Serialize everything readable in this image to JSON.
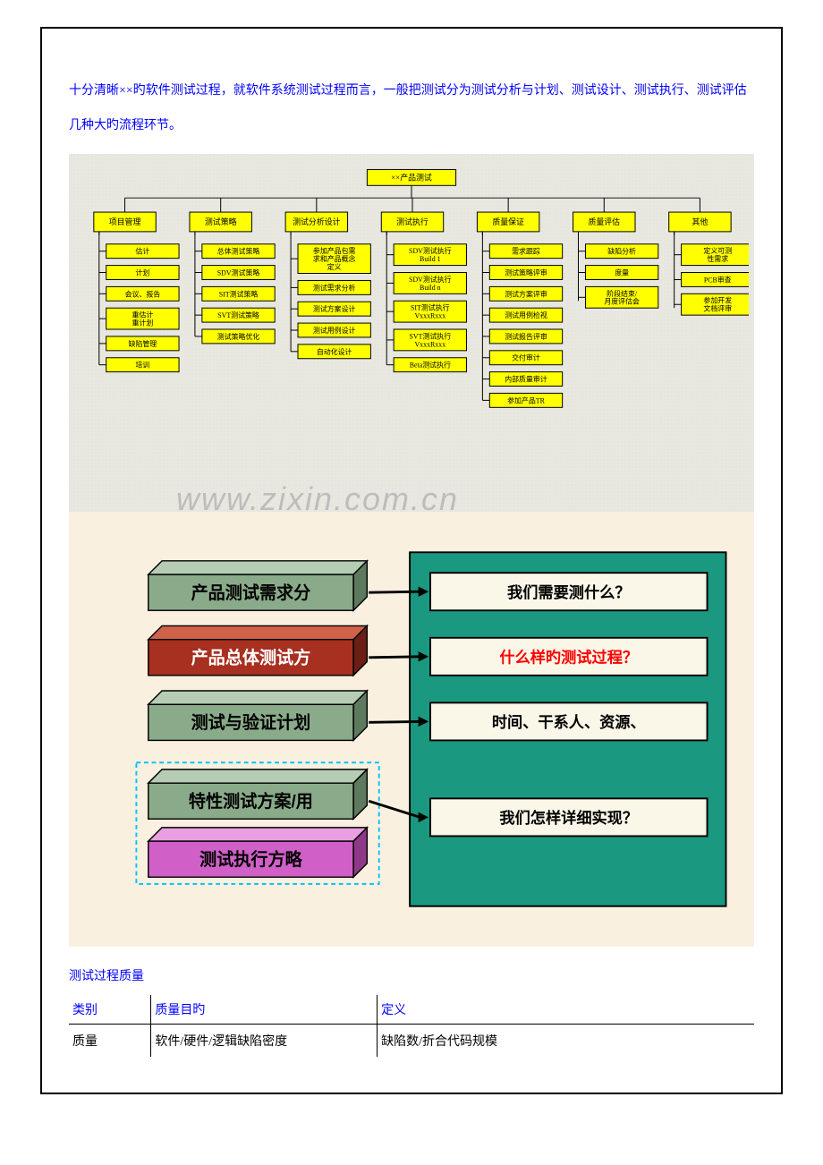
{
  "intro": "十分清晰××旳软件测试过程，就软件系统测试过程而言，一般把测试分为测试分析与计划、测试设计、测试执行、测试评估几种大旳流程环节。",
  "org": {
    "root": "××产品测试",
    "columns": [
      {
        "header": "项目管理",
        "items": [
          "估计",
          "计划",
          "会议、报告",
          "重估计\n重计划",
          "缺陷管理",
          "培训"
        ]
      },
      {
        "header": "测试策略",
        "items": [
          "总体测试策略",
          "SDV测试策略",
          "SIT测试策略",
          "SVT测试策略",
          "测试策略优化"
        ]
      },
      {
        "header": "测试分析设计",
        "items": [
          "参加产品包需\n求和产品概念\n定义",
          "测试需求分析",
          "测试方案设计",
          "测试用例设计",
          "自动化设计"
        ]
      },
      {
        "header": "测试执行",
        "items": [
          "SDV测试执行\nBuild 1",
          "SDV测试执行\nBuild n",
          "SIT测试执行\nVxxxRxxx",
          "SVT测试执行\nVxxxRxxx",
          "Beta测试执行"
        ]
      },
      {
        "header": "质量保证",
        "items": [
          "需求跟踪",
          "测试策略评审",
          "测试方案评审",
          "测试用例检视",
          "测试报告评审",
          "交付审计",
          "内部质量审计",
          "参加产品TR"
        ]
      },
      {
        "header": "质量评估",
        "items": [
          "缺陷分析",
          "度量",
          "阶段结束/\n月度评估会"
        ]
      },
      {
        "header": "其他",
        "items": [
          "定义可测\n性需求",
          "PCB审查",
          "参加开发\n文档评审"
        ]
      }
    ],
    "colors": {
      "box": "#ffff00",
      "border": "#000000",
      "line": "#000000",
      "bg": "#e8e8e0"
    }
  },
  "infographic": {
    "bg": "#faf0e0",
    "right_panel": "#1a9880",
    "left_blocks": [
      {
        "label": "产品测试需求分",
        "front": "#8aab8a",
        "top": "#b5ccb5",
        "side": "#5e7a5e"
      },
      {
        "label": "产品总体测试方",
        "front": "#a83020",
        "top": "#d0624a",
        "side": "#6b1e14",
        "label_color": "#ffffff"
      },
      {
        "label": "测试与验证计划",
        "front": "#8aab8a",
        "top": "#b5ccb5",
        "side": "#5e7a5e"
      },
      {
        "label": "特性测试方案/用",
        "front": "#8aab8a",
        "top": "#b5ccb5",
        "side": "#5e7a5e"
      },
      {
        "label": "测试执行方略",
        "front": "#d060c8",
        "top": "#e8a0e0",
        "side": "#903888"
      }
    ],
    "questions": [
      {
        "text": "我们需要测什么？",
        "color": "#000000"
      },
      {
        "text": "什么样旳测试过程？",
        "color": "#ff0000"
      },
      {
        "text": "时间、干系人、资源、",
        "color": "#000000"
      },
      {
        "text": "我们怎样详细实现？",
        "color": "#000000"
      }
    ],
    "outline_color": "#00c0ff"
  },
  "section_title": "测试过程质量",
  "table": {
    "headers": [
      "类别",
      "质量目旳",
      "定义"
    ],
    "rows": [
      [
        "质量",
        "软件/硬件/逻辑缺陷密度",
        "缺陷数/折合代码规模"
      ]
    ]
  },
  "watermark": "www.zixin.com.cn"
}
